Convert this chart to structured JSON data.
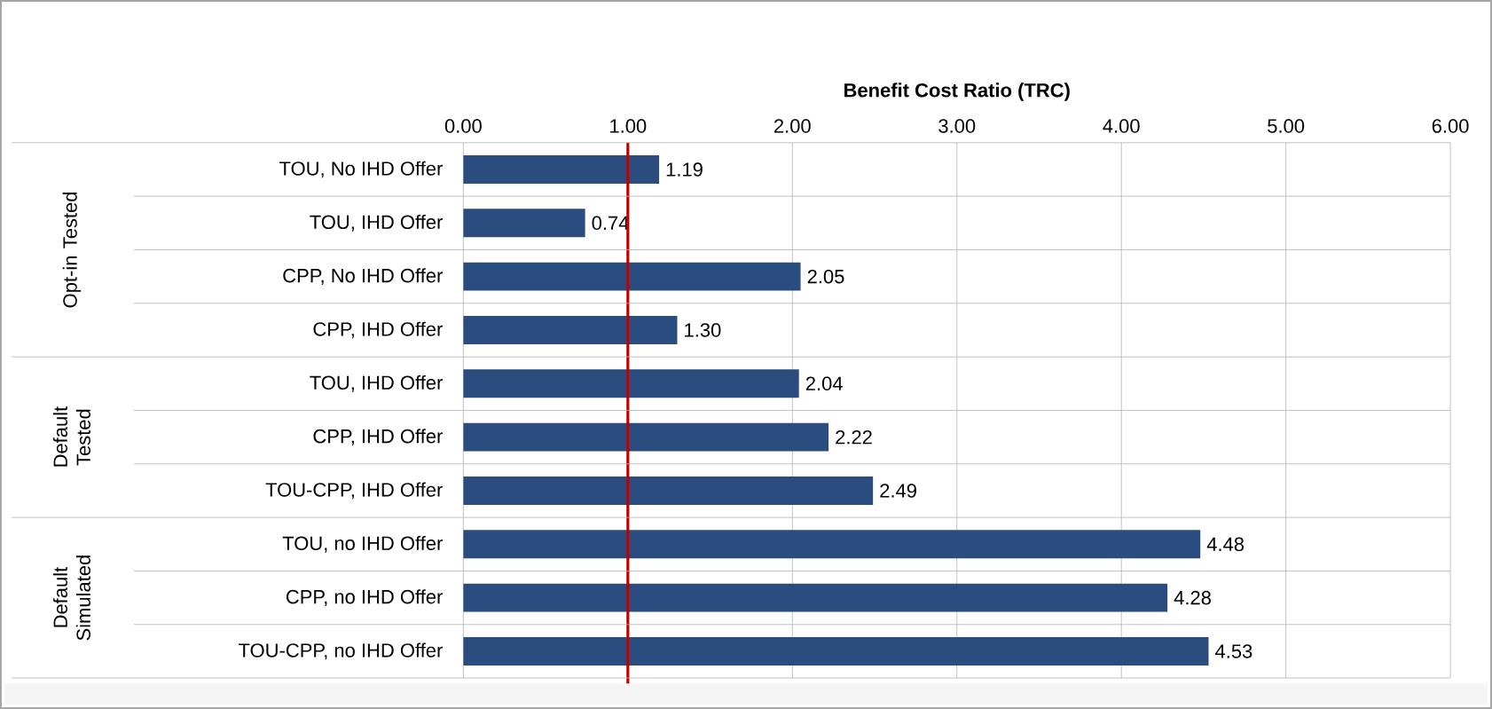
{
  "chart_data": {
    "type": "bar",
    "orientation": "horizontal",
    "xlabel": "Benefit Cost Ratio (TRC)",
    "categories": [
      "TOU, No IHD Offer",
      "TOU, IHD Offer",
      "CPP, No IHD Offer",
      "CPP, IHD Offer",
      "TOU, IHD Offer",
      "CPP, IHD Offer",
      "TOU-CPP, IHD Offer",
      "TOU, no IHD Offer",
      "CPP, no IHD Offer",
      "TOU-CPP, no IHD Offer"
    ],
    "values": [
      1.19,
      0.74,
      2.05,
      1.3,
      2.04,
      2.22,
      2.49,
      4.48,
      4.28,
      4.53
    ],
    "value_labels": [
      "1.19",
      "0.74",
      "2.05",
      "1.30",
      "2.04",
      "2.22",
      "2.49",
      "4.48",
      "4.28",
      "4.53"
    ],
    "color": "#2b4c7e",
    "xlim": [
      0,
      6
    ],
    "xticks": [
      {
        "value": 0,
        "label": "0.00"
      },
      {
        "value": 1,
        "label": "1.00"
      },
      {
        "value": 2,
        "label": "2.00"
      },
      {
        "value": 3,
        "label": "3.00"
      },
      {
        "value": 4,
        "label": "4.00"
      },
      {
        "value": 5,
        "label": "5.00"
      },
      {
        "value": 6,
        "label": "6.00"
      }
    ],
    "grid": "x",
    "ref_lines": [
      {
        "axis": "x",
        "value": 1,
        "color": "#c00000"
      }
    ],
    "annotations": [
      "Opt-in Tested",
      "Default Tested",
      "Default Simulated"
    ]
  }
}
